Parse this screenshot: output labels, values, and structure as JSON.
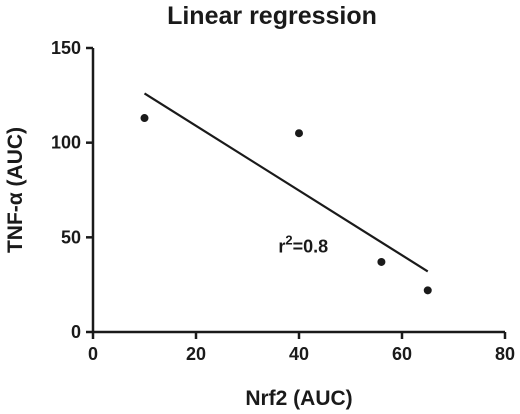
{
  "chart_data": {
    "type": "scatter",
    "title": "Linear regression",
    "xlabel": "Nrf2 (AUC)",
    "ylabel": "TNF-α (AUC)",
    "xlim": [
      0,
      80
    ],
    "ylim": [
      0,
      150
    ],
    "xticks": [
      0,
      20,
      40,
      60,
      80
    ],
    "yticks": [
      0,
      50,
      100,
      150
    ],
    "grid": false,
    "legend": "none",
    "points": [
      {
        "x": 10,
        "y": 113
      },
      {
        "x": 40,
        "y": 105
      },
      {
        "x": 56,
        "y": 37
      },
      {
        "x": 65,
        "y": 22
      }
    ],
    "regression_line": {
      "x_start": 10,
      "y_start": 126,
      "x_end": 65,
      "y_end": 32
    },
    "annotation": {
      "base": "r",
      "superscript": "2",
      "rest": "=0.8",
      "x": 36,
      "y": 42
    }
  }
}
